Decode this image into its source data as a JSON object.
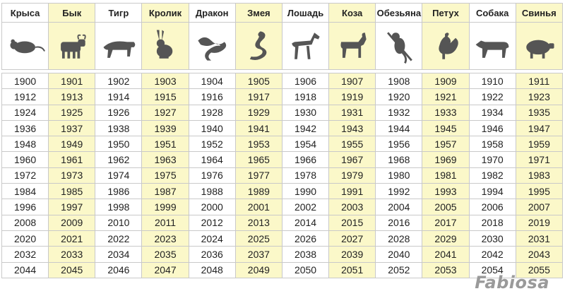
{
  "animals": [
    {
      "name": "Крыса",
      "icon": "rat-icon"
    },
    {
      "name": "Бык",
      "icon": "ox-icon"
    },
    {
      "name": "Тигр",
      "icon": "tiger-icon"
    },
    {
      "name": "Кролик",
      "icon": "rabbit-icon"
    },
    {
      "name": "Дракон",
      "icon": "dragon-icon"
    },
    {
      "name": "Змея",
      "icon": "snake-icon"
    },
    {
      "name": "Лошадь",
      "icon": "horse-icon"
    },
    {
      "name": "Коза",
      "icon": "goat-icon"
    },
    {
      "name": "Обезьяна",
      "icon": "monkey-icon"
    },
    {
      "name": "Петух",
      "icon": "rooster-icon"
    },
    {
      "name": "Собака",
      "icon": "dog-icon"
    },
    {
      "name": "Свинья",
      "icon": "pig-icon"
    }
  ],
  "years": [
    [
      "1900",
      "1901",
      "1902",
      "1903",
      "1904",
      "1905",
      "1906",
      "1907",
      "1908",
      "1909",
      "1910",
      "1911"
    ],
    [
      "1912",
      "1913",
      "1914",
      "1915",
      "1916",
      "1917",
      "1918",
      "1919",
      "1920",
      "1921",
      "1922",
      "1923"
    ],
    [
      "1924",
      "1925",
      "1926",
      "1927",
      "1928",
      "1929",
      "1930",
      "1931",
      "1932",
      "1933",
      "1934",
      "1935"
    ],
    [
      "1936",
      "1937",
      "1938",
      "1939",
      "1940",
      "1941",
      "1942",
      "1943",
      "1944",
      "1945",
      "1946",
      "1947"
    ],
    [
      "1948",
      "1949",
      "1950",
      "1951",
      "1952",
      "1953",
      "1954",
      "1955",
      "1956",
      "1957",
      "1958",
      "1959"
    ],
    [
      "1960",
      "1961",
      "1962",
      "1963",
      "1964",
      "1965",
      "1966",
      "1967",
      "1968",
      "1969",
      "1970",
      "1971"
    ],
    [
      "1972",
      "1973",
      "1974",
      "1975",
      "1976",
      "1977",
      "1978",
      "1979",
      "1980",
      "1981",
      "1982",
      "1983"
    ],
    [
      "1984",
      "1985",
      "1986",
      "1987",
      "1988",
      "1989",
      "1990",
      "1991",
      "1992",
      "1993",
      "1994",
      "1995"
    ],
    [
      "1996",
      "1997",
      "1998",
      "1999",
      "2000",
      "2001",
      "2002",
      "2003",
      "2004",
      "2005",
      "2006",
      "2007"
    ],
    [
      "2008",
      "2009",
      "2010",
      "2011",
      "2012",
      "2013",
      "2014",
      "2015",
      "2016",
      "2017",
      "2018",
      "2019"
    ],
    [
      "2020",
      "2021",
      "2022",
      "2023",
      "2024",
      "2025",
      "2026",
      "2027",
      "2028",
      "2029",
      "2030",
      "2031"
    ],
    [
      "2032",
      "2033",
      "2034",
      "2035",
      "2036",
      "2037",
      "2038",
      "2039",
      "2040",
      "2041",
      "2042",
      "2043"
    ],
    [
      "2044",
      "2045",
      "2046",
      "2047",
      "2048",
      "2049",
      "2050",
      "2051",
      "2052",
      "2053",
      "2054",
      "2055"
    ]
  ],
  "logo": "Fabiosa",
  "colors": {
    "alt_column": "#fbf8c9",
    "grid": "#c9c9c9",
    "icon": "#555555",
    "logo": "#9a9a9a"
  }
}
